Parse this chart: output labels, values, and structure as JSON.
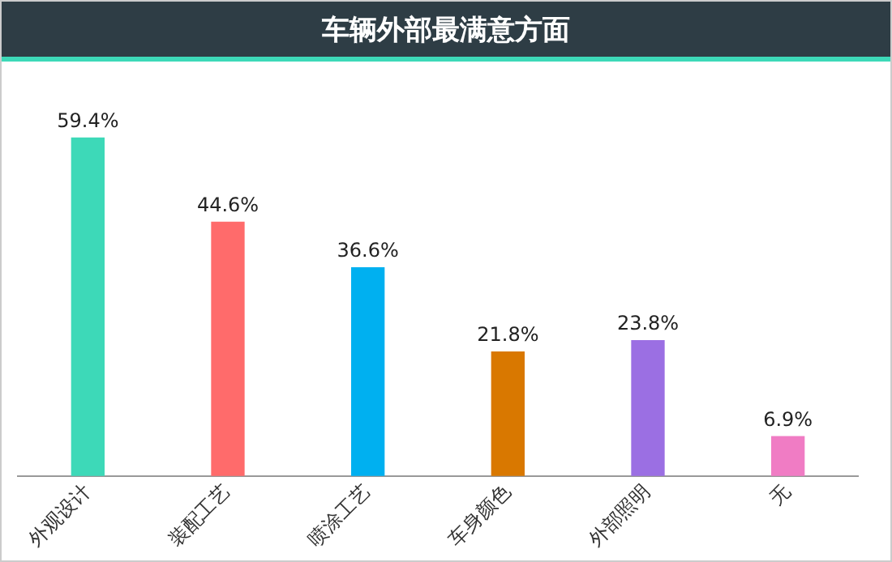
{
  "chart_data": {
    "type": "bar",
    "title": "车辆外部最满意方面",
    "categories": [
      "外观设计",
      "装配工艺",
      "喷涂工艺",
      "车身颜色",
      "外部照明",
      "无"
    ],
    "values": [
      59.4,
      44.6,
      36.6,
      21.8,
      23.8,
      6.9
    ],
    "colors": [
      "#3dd9b8",
      "#ff6b6b",
      "#00b0f0",
      "#d97800",
      "#9b6fe3",
      "#f07cc4"
    ],
    "value_labels": [
      "59.4%",
      "44.6%",
      "36.6%",
      "21.8%",
      "23.8%",
      "6.9%"
    ],
    "grid": false,
    "legend": false
  }
}
